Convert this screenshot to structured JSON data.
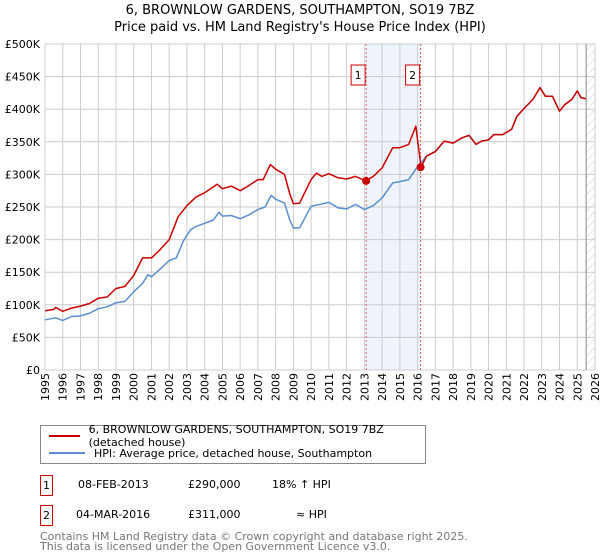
{
  "title_line1": "6, BROWNLOW GARDENS, SOUTHAMPTON, SO19 7BZ",
  "title_line2": "Price paid vs. HM Land Registry's House Price Index (HPI)",
  "legend": {
    "property": "6, BROWNLOW GARDENS, SOUTHAMPTON, SO19 7BZ (detached house)",
    "hpi": "HPI: Average price, detached house, Southampton"
  },
  "transactions": [
    {
      "num": "1",
      "date": "08-FEB-2013",
      "price": "£290,000",
      "vs_hpi": "18% ↑ HPI"
    },
    {
      "num": "2",
      "date": "04-MAR-2016",
      "price": "£311,000",
      "vs_hpi": "≈ HPI"
    }
  ],
  "footer": {
    "line1": "Contains HM Land Registry data © Crown copyright and database right 2025.",
    "line2": "This data is licensed under the Open Government Licence v3.0."
  },
  "colors": {
    "property": "#cc0000",
    "hpi": "#5b8fd0",
    "shade": "#eef3fc",
    "grid": "#cccccc"
  },
  "chart_data": {
    "type": "line",
    "title": "6, BROWNLOW GARDENS, SOUTHAMPTON, SO19 7BZ — Price paid vs. HM Land Registry's House Price Index (HPI)",
    "xlabel": "",
    "ylabel": "",
    "xlim": [
      1995,
      2026
    ],
    "ylim": [
      0,
      500000
    ],
    "x_ticks": [
      "1995",
      "1996",
      "1997",
      "1998",
      "1999",
      "2000",
      "2001",
      "2002",
      "2003",
      "2004",
      "2005",
      "2006",
      "2007",
      "2008",
      "2009",
      "2010",
      "2011",
      "2012",
      "2013",
      "2014",
      "2015",
      "2016",
      "2017",
      "2018",
      "2019",
      "2020",
      "2021",
      "2022",
      "2023",
      "2024",
      "2025",
      "2026"
    ],
    "y_ticks": [
      {
        "v": 0,
        "label": "£0"
      },
      {
        "v": 50000,
        "label": "£50K"
      },
      {
        "v": 100000,
        "label": "£100K"
      },
      {
        "v": 150000,
        "label": "£150K"
      },
      {
        "v": 200000,
        "label": "£200K"
      },
      {
        "v": 250000,
        "label": "£250K"
      },
      {
        "v": 300000,
        "label": "£300K"
      },
      {
        "v": 350000,
        "label": "£350K"
      },
      {
        "v": 400000,
        "label": "£400K"
      },
      {
        "v": 450000,
        "label": "£450K"
      },
      {
        "v": 500000,
        "label": "£500K"
      }
    ],
    "grid": true,
    "legend_position": "below",
    "series": [
      {
        "name": "6, BROWNLOW GARDENS, SOUTHAMPTON, SO19 7BZ (detached house)",
        "color": "#cc0000",
        "x": [
          1995,
          1995.5,
          1995.6,
          1996,
          1996.5,
          1997,
          1997.5,
          1998,
          1998.5,
          1999,
          1999.5,
          2000,
          2000.5,
          2001,
          2001.5,
          2002,
          2002.5,
          2003,
          2003.5,
          2004,
          2004.7,
          2005,
          2005.5,
          2006,
          2006.5,
          2007,
          2007.3,
          2007.7,
          2008,
          2008.5,
          2008.8,
          2009,
          2009.35,
          2010,
          2010.3,
          2010.6,
          2011,
          2011.5,
          2012,
          2012.5,
          2013.1,
          2013.5,
          2014,
          2014.6,
          2015,
          2015.5,
          2015.9,
          2016.2,
          2016.5,
          2017,
          2017.5,
          2018,
          2018.5,
          2018.9,
          2019.3,
          2019.6,
          2020,
          2020.3,
          2020.8,
          2021.3,
          2021.6,
          2022,
          2022.5,
          2022.9,
          2023.2,
          2023.6,
          2024,
          2024.3,
          2024.7,
          2025,
          2025.2,
          2025.5
        ],
        "y": [
          91000,
          93000,
          96000,
          90000,
          95000,
          98000,
          102000,
          110000,
          112000,
          125000,
          128000,
          145000,
          172000,
          172000,
          185000,
          200000,
          235000,
          252000,
          265000,
          272000,
          285000,
          278000,
          282000,
          275000,
          283000,
          292000,
          292000,
          315000,
          308000,
          300000,
          270000,
          255000,
          256000,
          292000,
          302000,
          297000,
          301000,
          295000,
          293000,
          297000,
          290000,
          297000,
          310000,
          341000,
          341000,
          346000,
          374000,
          311000,
          328000,
          335000,
          351000,
          348000,
          356000,
          360000,
          346000,
          351000,
          353000,
          361000,
          361000,
          369000,
          389000,
          401000,
          415000,
          433000,
          420000,
          420000,
          397000,
          407000,
          415000,
          428000,
          418000,
          416000
        ]
      },
      {
        "name": "HPI: Average price, detached house, Southampton",
        "color": "#5b8fd0",
        "x": [
          1995,
          1995.6,
          1996,
          1996.5,
          1997,
          1997.5,
          1998,
          1998.5,
          1999,
          1999.5,
          2000,
          2000.5,
          2000.8,
          2001,
          2001.5,
          2002,
          2002.4,
          2002.8,
          2003.2,
          2003.5,
          2004,
          2004.5,
          2004.8,
          2005,
          2005.5,
          2006,
          2006.5,
          2007,
          2007.4,
          2007.75,
          2008,
          2008.5,
          2008.8,
          2009,
          2009.35,
          2010,
          2011,
          2011.5,
          2012,
          2012.5,
          2013,
          2013.5,
          2014,
          2014.6,
          2015,
          2015.5,
          2016,
          2016.2,
          2016.5,
          2017,
          2017.5,
          2018,
          2018.5,
          2018.9,
          2019.3,
          2019.6,
          2020,
          2020.3,
          2020.8,
          2021.3,
          2021.6,
          2022,
          2022.5,
          2022.9,
          2023.2,
          2023.6,
          2024,
          2024.3,
          2024.7,
          2025,
          2025.2,
          2025.5
        ],
        "y": [
          77000,
          80000,
          76000,
          82000,
          83000,
          87000,
          94000,
          97000,
          103000,
          105000,
          120000,
          133000,
          146000,
          143000,
          155000,
          168000,
          172000,
          198000,
          215000,
          220000,
          225000,
          230000,
          242000,
          236000,
          237000,
          232000,
          238000,
          246000,
          250000,
          268000,
          262000,
          256000,
          230000,
          218000,
          218000,
          251000,
          257000,
          249000,
          247000,
          254000,
          246000,
          252000,
          264000,
          287000,
          289000,
          292000,
          312000,
          318000,
          328000,
          335000,
          351000,
          348000,
          356000,
          360000,
          346000,
          351000,
          353000,
          361000,
          361000,
          369000,
          389000,
          401000,
          415000,
          433000,
          420000,
          420000,
          397000,
          407000,
          415000,
          428000,
          418000,
          416000
        ]
      }
    ],
    "sales": [
      {
        "label": "1",
        "x": 2013.1,
        "y": 290000
      },
      {
        "label": "2",
        "x": 2016.17,
        "y": 311000
      }
    ],
    "shaded_range": [
      2013.1,
      2016.17
    ],
    "hatched_from": 2025.5
  }
}
